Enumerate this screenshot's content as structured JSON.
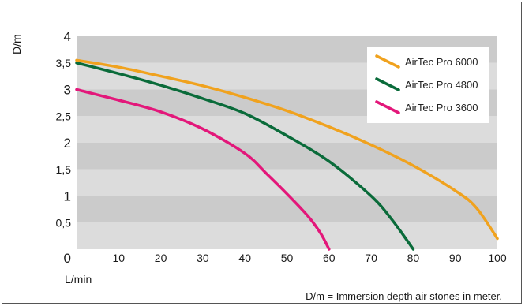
{
  "chart_data": {
    "type": "line",
    "ylabel": "D/m",
    "xlabel": "L/min",
    "note": "D/m = Immersion depth air stones in meter.",
    "xlim": [
      0,
      100
    ],
    "ylim": [
      0,
      4
    ],
    "x_ticks": [
      "0",
      "10",
      "20",
      "30",
      "40",
      "50",
      "60",
      "70",
      "80",
      "90",
      "100"
    ],
    "y_ticks": [
      "0,5",
      "1",
      "1,5",
      "2",
      "2,5",
      "3",
      "3,5",
      "4"
    ],
    "y_zero_label": "0",
    "grid": "alternating horizontal bands",
    "legend_position": "top-right",
    "series": [
      {
        "name": "AirTec Pro 6000",
        "color": "#f0a21e",
        "x": [
          0,
          10,
          20,
          30,
          40,
          50,
          60,
          70,
          80,
          90,
          95,
          100
        ],
        "y": [
          3.55,
          3.42,
          3.25,
          3.07,
          2.85,
          2.6,
          2.3,
          1.96,
          1.57,
          1.1,
          0.78,
          0.2
        ]
      },
      {
        "name": "AirTec Pro 4800",
        "color": "#0a6b3a",
        "x": [
          0,
          10,
          20,
          30,
          40,
          50,
          60,
          70,
          75,
          80
        ],
        "y": [
          3.5,
          3.3,
          3.08,
          2.83,
          2.55,
          2.13,
          1.65,
          1.0,
          0.55,
          0.0
        ]
      },
      {
        "name": "AirTec Pro 3600",
        "color": "#e3177a",
        "x": [
          0,
          10,
          20,
          30,
          40,
          45,
          50,
          55,
          58,
          60
        ],
        "y": [
          3.0,
          2.8,
          2.58,
          2.26,
          1.8,
          1.43,
          1.04,
          0.62,
          0.3,
          0.0
        ]
      }
    ]
  }
}
